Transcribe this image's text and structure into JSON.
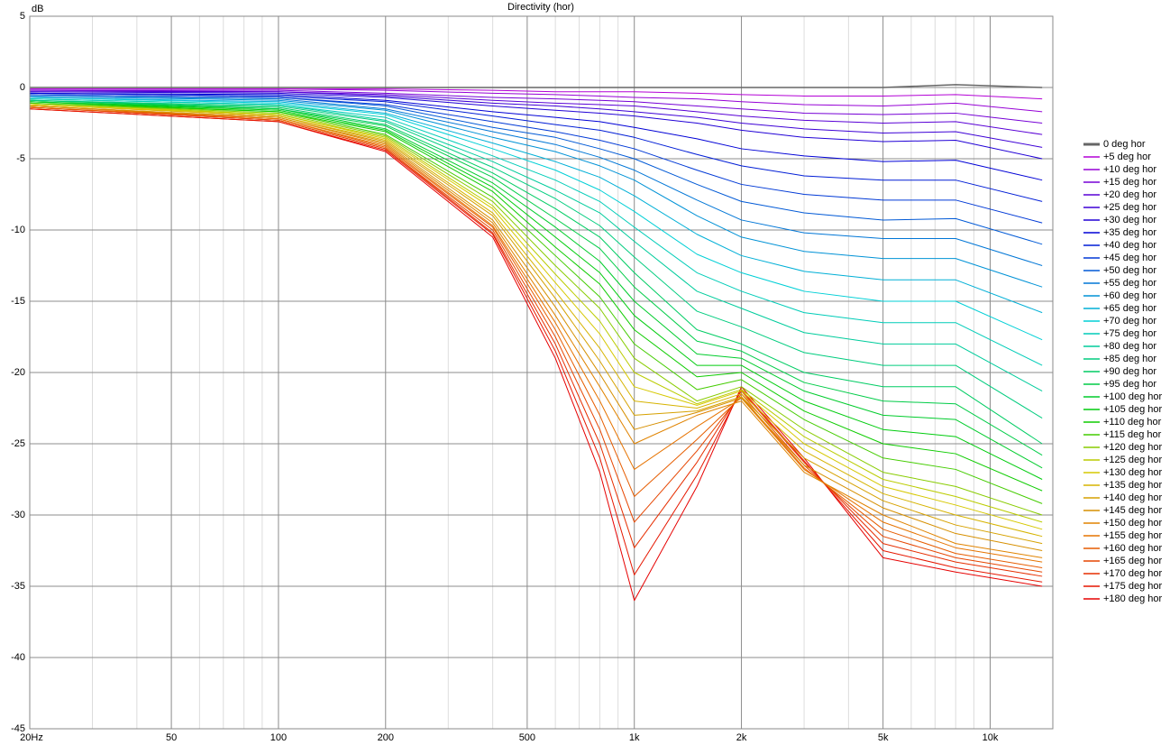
{
  "chart_data": {
    "type": "line",
    "title": "Directivity (hor)",
    "y_label": "dB",
    "log_x": true,
    "grid": true,
    "legend": "right",
    "xlim": [
      20,
      15000
    ],
    "ylim": [
      -45,
      5
    ],
    "xticks": [
      {
        "value": 20,
        "label": "20Hz"
      },
      50,
      100,
      200,
      500,
      {
        "value": 1000,
        "label": "1k"
      },
      {
        "value": 2000,
        "label": "2k"
      },
      {
        "value": 5000,
        "label": "5k"
      },
      {
        "value": 10000,
        "label": "10k"
      }
    ],
    "x_minor_grid": [
      30,
      40,
      60,
      70,
      80,
      90,
      300,
      400,
      600,
      700,
      800,
      900,
      3000,
      4000,
      6000,
      7000,
      8000,
      9000
    ],
    "yticks": [
      5,
      0,
      -5,
      -10,
      -15,
      -20,
      -25,
      -30,
      -35,
      -40,
      -45
    ],
    "x": [
      20,
      100,
      200,
      400,
      600,
      800,
      1000,
      1500,
      2000,
      3000,
      5000,
      8000,
      14000
    ],
    "series": [
      {
        "name": "0 deg hor",
        "color": "#666666",
        "values": [
          0,
          0,
          0,
          0,
          0,
          0,
          0,
          0,
          0,
          0,
          0,
          0.2,
          0
        ]
      },
      {
        "name": "+5 deg hor",
        "color": "hsl(290,100%,42%)",
        "values": [
          -0.1,
          -0.1,
          -0.1,
          -0.2,
          -0.3,
          -0.3,
          -0.3,
          -0.4,
          -0.5,
          -0.6,
          -0.6,
          -0.5,
          -0.8
        ]
      },
      {
        "name": "+10 deg hor",
        "color": "hsl(282,100%,42%)",
        "values": [
          -0.1,
          -0.1,
          -0.2,
          -0.4,
          -0.5,
          -0.6,
          -0.7,
          -0.8,
          -1,
          -1.2,
          -1.3,
          -1.1,
          -1.7
        ]
      },
      {
        "name": "+15 deg hor",
        "color": "hsl(273,100%,42%)",
        "values": [
          -0.2,
          -0.2,
          -0.4,
          -0.7,
          -0.8,
          -0.9,
          -1,
          -1.3,
          -1.5,
          -1.8,
          -1.9,
          -1.8,
          -2.5
        ]
      },
      {
        "name": "+20 deg hor",
        "color": "hsl(265,100%,42%)",
        "values": [
          -0.2,
          -0.3,
          -0.5,
          -0.9,
          -1.1,
          -1.2,
          -1.3,
          -1.7,
          -2,
          -2.3,
          -2.5,
          -2.4,
          -3.3
        ]
      },
      {
        "name": "+25 deg hor",
        "color": "hsl(257,100%,42%)",
        "values": [
          -0.3,
          -0.3,
          -0.6,
          -1.1,
          -1.3,
          -1.5,
          -1.7,
          -2.1,
          -2.5,
          -2.9,
          -3.2,
          -3.1,
          -4.2
        ]
      },
      {
        "name": "+30 deg hor",
        "color": "hsl(249,100%,42%)",
        "values": [
          -0.3,
          -0.4,
          -0.7,
          -1.3,
          -1.6,
          -1.8,
          -2,
          -2.5,
          -3,
          -3.5,
          -3.8,
          -3.7,
          -5
        ]
      },
      {
        "name": "+35 deg hor",
        "color": "hsl(240,100%,42%)",
        "values": [
          -0.4,
          -0.5,
          -0.9,
          -1.7,
          -2.1,
          -2.4,
          -2.8,
          -3.6,
          -4.3,
          -4.8,
          -5.2,
          -5.1,
          -6.5
        ]
      },
      {
        "name": "+40 deg hor",
        "color": "hsl(232,100%,42%)",
        "values": [
          -0.4,
          -0.6,
          -1,
          -2,
          -2.6,
          -3,
          -3.5,
          -4.7,
          -5.5,
          -6.2,
          -6.5,
          -6.5,
          -8
        ]
      },
      {
        "name": "+45 deg hor",
        "color": "hsl(224,100%,42%)",
        "values": [
          -0.5,
          -0.7,
          -1.2,
          -2.4,
          -3.1,
          -3.7,
          -4.3,
          -5.8,
          -6.8,
          -7.5,
          -7.9,
          -7.9,
          -9.5
        ]
      },
      {
        "name": "+50 deg hor",
        "color": "hsl(215,100%,42%)",
        "values": [
          -0.5,
          -0.7,
          -1.3,
          -2.8,
          -3.5,
          -4.3,
          -5,
          -6.8,
          -8,
          -8.8,
          -9.3,
          -9.2,
          -11
        ]
      },
      {
        "name": "+55 deg hor",
        "color": "hsl(207,100%,42%)",
        "values": [
          -0.6,
          -0.8,
          -1.5,
          -3.1,
          -4,
          -4.9,
          -5.8,
          -7.9,
          -9.3,
          -10.2,
          -10.6,
          -10.6,
          -12.5
        ]
      },
      {
        "name": "+60 deg hor",
        "color": "hsl(199,100%,42%)",
        "values": [
          -0.6,
          -0.9,
          -1.6,
          -3.5,
          -4.5,
          -5.5,
          -6.5,
          -9,
          -10.5,
          -11.5,
          -12,
          -12,
          -14
        ]
      },
      {
        "name": "+65 deg hor",
        "color": "hsl(191,100%,42%)",
        "values": [
          -0.7,
          -1,
          -1.8,
          -3.9,
          -5.2,
          -6.3,
          -7.6,
          -10.3,
          -11.8,
          -12.9,
          -13.5,
          -13.5,
          -15.8
        ]
      },
      {
        "name": "+70 deg hor",
        "color": "hsl(182,100%,42%)",
        "values": [
          -0.7,
          -1.1,
          -1.9,
          -4.3,
          -5.8,
          -7.2,
          -8.7,
          -11.7,
          -13,
          -14.3,
          -15,
          -15,
          -17.7
        ]
      },
      {
        "name": "+75 deg hor",
        "color": "hsl(174,100%,40%)",
        "values": [
          -0.8,
          -1.2,
          -2.1,
          -4.8,
          -6.5,
          -8,
          -9.8,
          -13,
          -14.3,
          -15.8,
          -16.5,
          -16.5,
          -19.5
        ]
      },
      {
        "name": "+80 deg hor",
        "color": "hsl(166,100%,40%)",
        "values": [
          -0.8,
          -1.2,
          -2.3,
          -5.2,
          -7.2,
          -8.8,
          -10.8,
          -14.3,
          -15.5,
          -17.2,
          -18,
          -18,
          -21.3
        ]
      },
      {
        "name": "+85 deg hor",
        "color": "hsl(157,100%,40%)",
        "values": [
          -0.9,
          -1.3,
          -2.4,
          -5.6,
          -7.8,
          -9.7,
          -11.9,
          -15.7,
          -16.8,
          -18.6,
          -19.5,
          -19.5,
          -23.2
        ]
      },
      {
        "name": "+90 deg hor",
        "color": "hsl(149,100%,40%)",
        "values": [
          -0.9,
          -1.4,
          -2.6,
          -6,
          -8.5,
          -10.5,
          -13,
          -17,
          -18,
          -20,
          -21,
          -21,
          -25
        ]
      },
      {
        "name": "+95 deg hor",
        "color": "hsl(141,100%,40%)",
        "values": [
          -0.9,
          -1.5,
          -2.7,
          -6.3,
          -9.2,
          -11.3,
          -14,
          -17.8,
          -18.5,
          -20.7,
          -22,
          -22.2,
          -25.8
        ]
      },
      {
        "name": "+100 deg hor",
        "color": "hsl(133,100%,40%)",
        "values": [
          -1,
          -1.5,
          -2.9,
          -6.7,
          -9.8,
          -12.2,
          -15,
          -18.7,
          -19,
          -21.3,
          -23,
          -23.3,
          -26.7
        ]
      },
      {
        "name": "+105 deg hor",
        "color": "hsl(124,100%,40%)",
        "values": [
          -1,
          -1.6,
          -3,
          -7,
          -10.5,
          -13,
          -16,
          -19.5,
          -19.5,
          -22,
          -24,
          -24.5,
          -27.5
        ]
      },
      {
        "name": "+110 deg hor",
        "color": "hsl(116,100%,40%)",
        "values": [
          -1,
          -1.7,
          -3.1,
          -7.3,
          -11.2,
          -13.8,
          -17,
          -20.3,
          -20,
          -22.7,
          -25,
          -25.7,
          -28.3
        ]
      },
      {
        "name": "+115 deg hor",
        "color": "hsl(100,100%,40%)",
        "values": [
          -1.1,
          -1.7,
          -3.3,
          -7.7,
          -11.8,
          -14.7,
          -18,
          -21.2,
          -20.5,
          -23.3,
          -26,
          -26.8,
          -29.2
        ]
      },
      {
        "name": "+120 deg hor",
        "color": "hsl(80,100%,40%)",
        "values": [
          -1.1,
          -1.8,
          -3.4,
          -8,
          -12.5,
          -15.5,
          -19,
          -22,
          -21,
          -24,
          -27,
          -28,
          -30
        ]
      },
      {
        "name": "+125 deg hor",
        "color": "hsl(65,100%,40%)",
        "values": [
          -1.1,
          -1.9,
          -3.5,
          -8.3,
          -13.1,
          -16.4,
          -20,
          -22.2,
          -21.2,
          -24.5,
          -27.5,
          -28.7,
          -30.5
        ]
      },
      {
        "name": "+130 deg hor",
        "color": "hsl(56,100%,42%)",
        "values": [
          -1.2,
          -1.9,
          -3.6,
          -8.5,
          -13.7,
          -17.3,
          -21,
          -22.3,
          -21.3,
          -25,
          -28,
          -29.3,
          -31
        ]
      },
      {
        "name": "+135 deg hor",
        "color": "hsl(50,100%,42%)",
        "values": [
          -1.2,
          -2,
          -3.7,
          -8.8,
          -14.3,
          -18.3,
          -22,
          -22.5,
          -21.5,
          -25.5,
          -28.5,
          -30,
          -31.5
        ]
      },
      {
        "name": "+140 deg hor",
        "color": "hsl(45,100%,42%)",
        "values": [
          -1.2,
          -2,
          -3.8,
          -9,
          -14.8,
          -19.2,
          -23,
          -22.7,
          -21.7,
          -26,
          -29,
          -30.7,
          -32
        ]
      },
      {
        "name": "+145 deg hor",
        "color": "hsl(40,100%,42%)",
        "values": [
          -1.3,
          -2.1,
          -3.9,
          -9.3,
          -15.4,
          -20.1,
          -24,
          -22.8,
          -21.8,
          -26.5,
          -29.5,
          -31.3,
          -32.5
        ]
      },
      {
        "name": "+150 deg hor",
        "color": "hsl(35,100%,44%)",
        "values": [
          -1.3,
          -2.1,
          -4,
          -9.5,
          -16,
          -21,
          -25,
          -23,
          -22,
          -27,
          -30,
          -32,
          -33
        ]
      },
      {
        "name": "+155 deg hor",
        "color": "hsl(30,100%,45%)",
        "values": [
          -1.3,
          -2.2,
          -4.1,
          -9.7,
          -16.5,
          -22,
          -26.8,
          -23.8,
          -21.8,
          -26.8,
          -30.5,
          -32.3,
          -33.3
        ]
      },
      {
        "name": "+160 deg hor",
        "color": "hsl(24,100%,45%)",
        "values": [
          -1.4,
          -2.2,
          -4.2,
          -9.8,
          -17,
          -23,
          -28.7,
          -24.7,
          -21.7,
          -26.7,
          -31,
          -32.7,
          -33.7
        ]
      },
      {
        "name": "+165 deg hor",
        "color": "hsl(18,100%,45%)",
        "values": [
          -1.4,
          -2.3,
          -4.3,
          -10,
          -17.5,
          -24,
          -30.5,
          -25.5,
          -21.5,
          -26.5,
          -31.5,
          -33,
          -34
        ]
      },
      {
        "name": "+170 deg hor",
        "color": "hsl(12,100%,45%)",
        "values": [
          -1.4,
          -2.3,
          -4.3,
          -10.2,
          -18,
          -25,
          -32.3,
          -26.3,
          -21.3,
          -26.3,
          -32,
          -33.3,
          -34.3
        ]
      },
      {
        "name": "+175 deg hor",
        "color": "hsl(6,100%,45%)",
        "values": [
          -1.5,
          -2.4,
          -4.4,
          -10.3,
          -18.5,
          -26,
          -34.2,
          -27.2,
          -21.2,
          -26.2,
          -32.5,
          -33.7,
          -34.7
        ]
      },
      {
        "name": "+180 deg hor",
        "color": "hsl(0,100%,45%)",
        "values": [
          -1.5,
          -2.4,
          -4.5,
          -10.5,
          -19,
          -27,
          -36,
          -28,
          -21,
          -26,
          -33,
          -34,
          -35
        ]
      }
    ]
  }
}
